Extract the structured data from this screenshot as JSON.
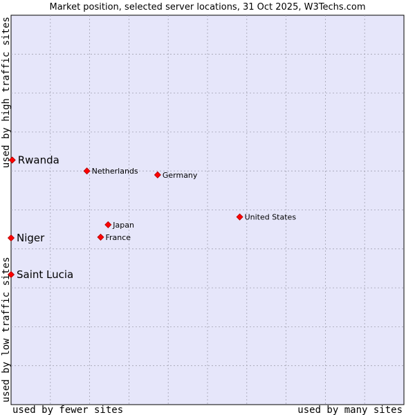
{
  "chart_data": {
    "type": "scatter",
    "title": "Market position, selected server locations, 31 Oct 2025, W3Techs.com",
    "xlabel_left": "used by fewer sites",
    "xlabel_right": "used by many sites",
    "ylabel_bottom": "used by low traffic sites",
    "ylabel_top": "used by high traffic sites",
    "xlim": [
      0,
      100
    ],
    "ylim": [
      0,
      100
    ],
    "grid": true,
    "colors": {
      "plot_bg": "#e6e6fa",
      "grid": "#a0a0b0",
      "point": "#ff0000",
      "point_edge": "#aa0000"
    },
    "points": [
      {
        "name": "Rwanda",
        "x": 0.3,
        "y": 62.8,
        "emphasis": true
      },
      {
        "name": "Niger",
        "x": 0.0,
        "y": 42.8,
        "emphasis": true
      },
      {
        "name": "Saint Lucia",
        "x": 0.0,
        "y": 33.4,
        "emphasis": true
      },
      {
        "name": "Netherlands",
        "x": 19.3,
        "y": 60.0,
        "emphasis": false
      },
      {
        "name": "Germany",
        "x": 37.3,
        "y": 59.0,
        "emphasis": false
      },
      {
        "name": "United States",
        "x": 58.2,
        "y": 48.2,
        "emphasis": false
      },
      {
        "name": "Japan",
        "x": 24.7,
        "y": 46.2,
        "emphasis": false
      },
      {
        "name": "France",
        "x": 22.8,
        "y": 43.0,
        "emphasis": false
      }
    ]
  }
}
